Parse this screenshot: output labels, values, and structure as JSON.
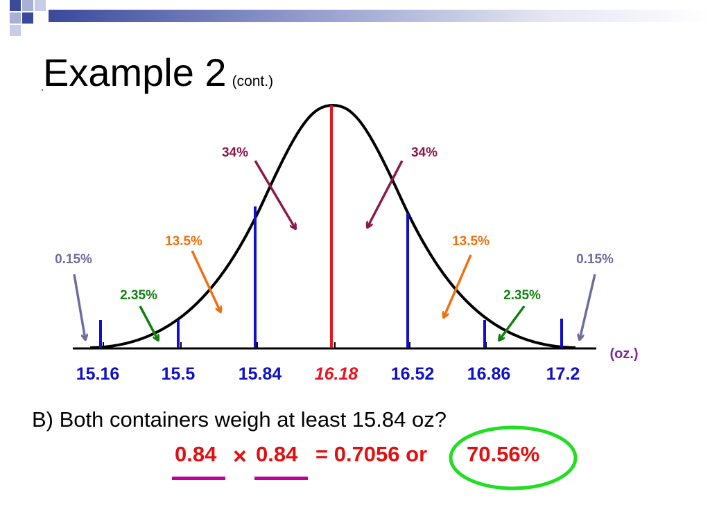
{
  "slide": {
    "title": "Example 2",
    "title_suffix": "(cont.)",
    "question": "B) Both containers weigh at least 15.84 oz?",
    "calc": {
      "left_factor": "0.84",
      "right_factor": "0.84",
      "equals_text": "= 0.7056 or",
      "percent": "70.56%",
      "times_symbol": "×"
    }
  },
  "diagram": {
    "unit": "(oz.)",
    "ticks": [
      "15.16",
      "15.5",
      "15.84",
      "16.18",
      "16.52",
      "16.86",
      "17.2"
    ],
    "mean": "16.18",
    "percent_labels": {
      "left_34": "34%",
      "right_34": "34%",
      "left_13_5": "13.5%",
      "right_13_5": "13.5%",
      "left_2_35": "2.35%",
      "right_2_35": "2.35%",
      "left_0_15": "0.15%",
      "right_0_15": "0.15%"
    },
    "colors": {
      "curve": "#000000",
      "mean_line": "#e8141e",
      "sd_lines": "#1010c8",
      "tick_labels": "#1010c8",
      "mean_label": "#e8141e",
      "pct_34": "#8b1848",
      "pct_13_5": "#f07010",
      "pct_2_35": "#108010",
      "pct_0_15": "#6c6ca0",
      "unit": "#7a2a9a",
      "highlight_circle": "#22dd22",
      "underline": "#c0009a"
    }
  }
}
